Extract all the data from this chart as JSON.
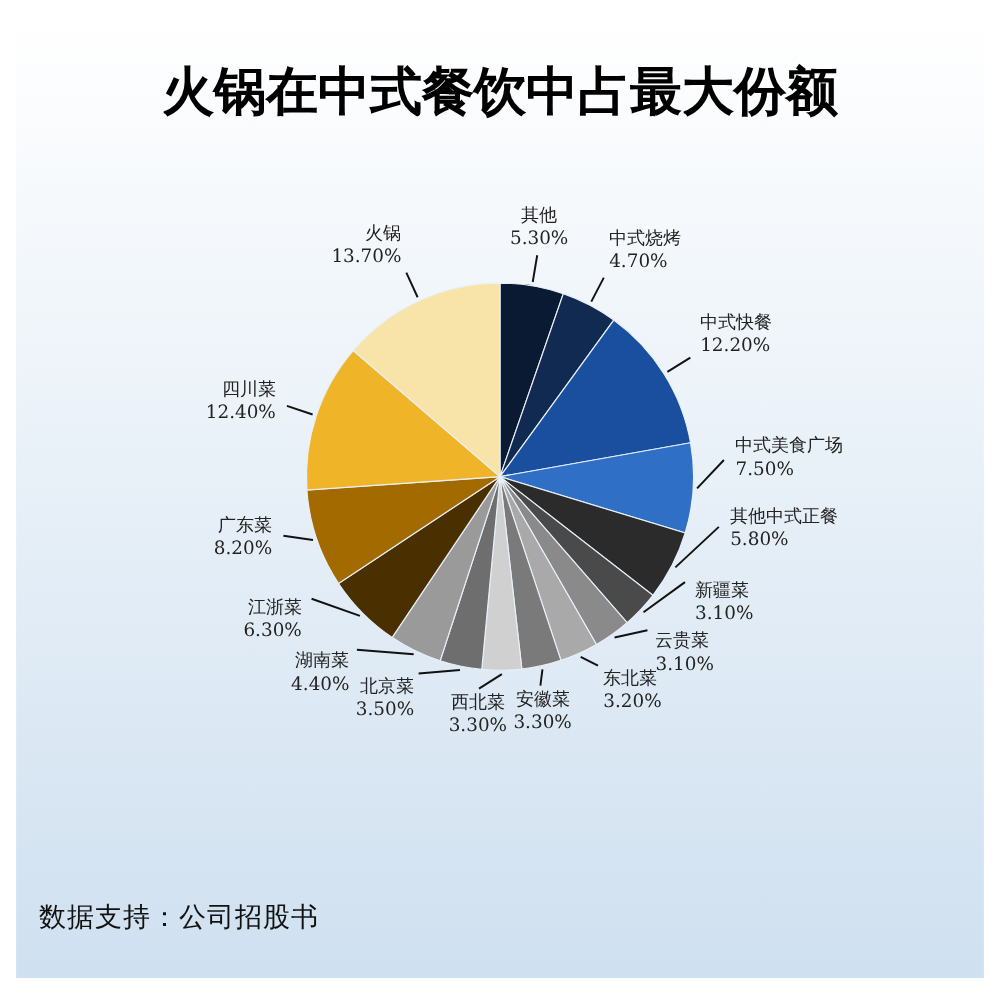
{
  "chart_data": {
    "type": "pie",
    "title": "火锅在中式餐饮中占最大份额",
    "categories": [
      "其他",
      "中式烧烤",
      "中式快餐",
      "中式美食广场",
      "其他中式正餐",
      "新疆菜",
      "云贵菜",
      "东北菜",
      "安徽菜",
      "西北菜",
      "北京菜",
      "湖南菜",
      "江浙菜",
      "广东菜",
      "四川菜",
      "火锅"
    ],
    "values": [
      5.3,
      4.7,
      12.2,
      7.5,
      5.8,
      3.1,
      3.1,
      3.2,
      3.3,
      3.3,
      3.5,
      4.4,
      6.3,
      8.2,
      12.4,
      13.7
    ],
    "value_labels": [
      "5.30%",
      "4.70%",
      "12.20%",
      "7.50%",
      "5.80%",
      "3.10%",
      "3.10%",
      "3.20%",
      "3.30%",
      "3.30%",
      "3.50%",
      "4.40%",
      "6.30%",
      "8.20%",
      "12.40%",
      "13.70%"
    ],
    "colors": [
      "#0b1a33",
      "#102a52",
      "#1a4fa0",
      "#2f6fc6",
      "#2b2b2b",
      "#4a4a4a",
      "#8a8a8a",
      "#a9a9a9",
      "#7a7a7a",
      "#d0d0d0",
      "#6e6e6e",
      "#9a9a9a",
      "#4a3000",
      "#a36a00",
      "#f0b429",
      "#f8e3a8"
    ],
    "annotations": [
      "数据支持：公司招股书"
    ]
  }
}
